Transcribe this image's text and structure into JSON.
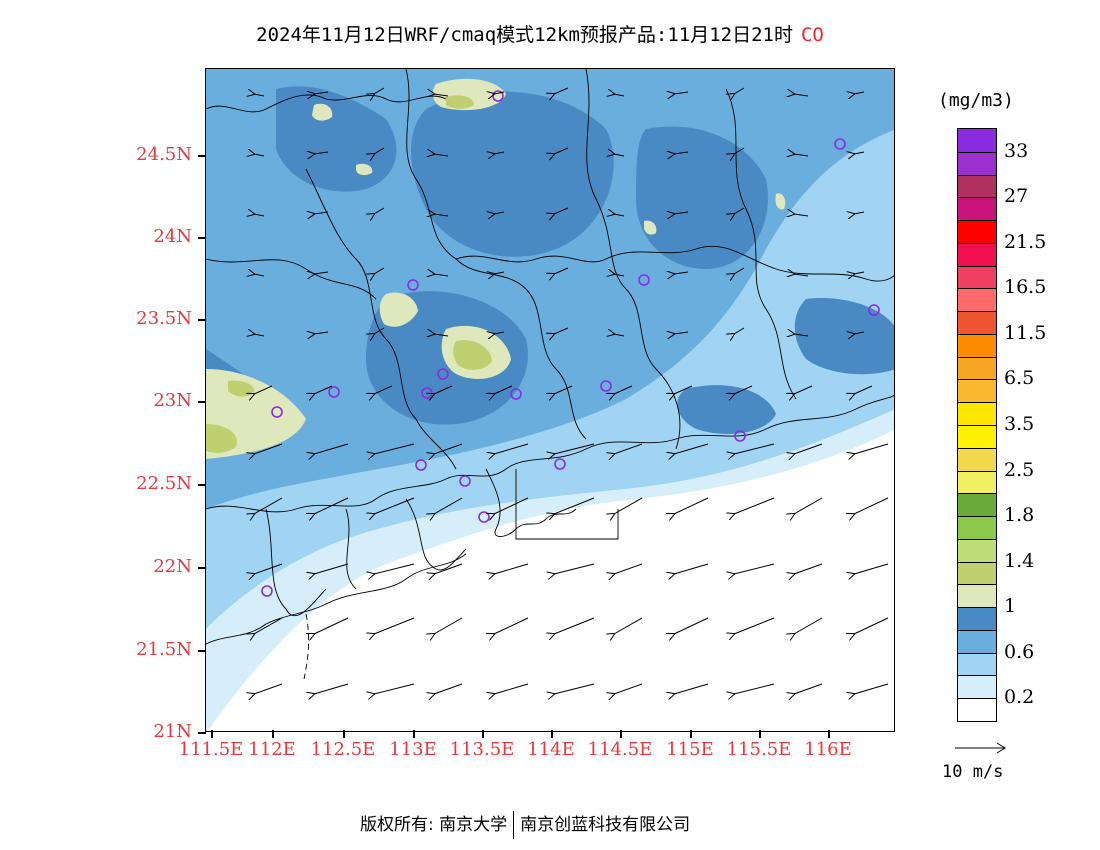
{
  "title": {
    "text": "2024年11月12日WRF/cmaq模式12km预报产品:11月12日21时",
    "species": "CO"
  },
  "colors": {
    "tick_label": "#e8383c",
    "species_label": "#e8282c",
    "station_marker": "#8a2be2"
  },
  "map": {
    "y_ticks": [
      "24.5N",
      "24N",
      "23.5N",
      "23N",
      "22.5N",
      "22N",
      "21.5N",
      "21N"
    ],
    "x_ticks": [
      "111.5E",
      "112E",
      "112.5E",
      "113E",
      "113.5E",
      "114E",
      "114.5E",
      "115E",
      "115.5E",
      "116E"
    ]
  },
  "legend": {
    "unit": "(mg/m3)",
    "bins": [
      {
        "color": "#8a2be2"
      },
      {
        "color": "#9b30d0"
      },
      {
        "color": "#b03060"
      },
      {
        "color": "#c8147a"
      },
      {
        "color": "#ff0000"
      },
      {
        "color": "#f20f50"
      },
      {
        "color": "#f04060"
      },
      {
        "color": "#ff6a6a"
      },
      {
        "color": "#ee5530"
      },
      {
        "color": "#ff8c00"
      },
      {
        "color": "#f5a623"
      },
      {
        "color": "#f8b830"
      },
      {
        "color": "#ffe600"
      },
      {
        "color": "#fff200"
      },
      {
        "color": "#f2d84a"
      },
      {
        "color": "#f0f060"
      },
      {
        "color": "#6aaa3a"
      },
      {
        "color": "#8cc84a"
      },
      {
        "color": "#bedc78"
      },
      {
        "color": "#c0d070"
      },
      {
        "color": "#dfe8bc"
      },
      {
        "color": "#4a8ac4"
      },
      {
        "color": "#6aaede"
      },
      {
        "color": "#a0d4f2"
      },
      {
        "color": "#d6eefa"
      },
      {
        "color": "#ffffff"
      }
    ],
    "labels": [
      "33",
      "27",
      "21.5",
      "16.5",
      "11.5",
      "6.5",
      "3.5",
      "2.5",
      "1.8",
      "1.4",
      "1",
      "0.6",
      "0.2"
    ],
    "wind_key": "10 m/s"
  },
  "footer": {
    "copyright": "版权所有: 南京大学",
    "company": "南京创蓝科技有限公司"
  }
}
